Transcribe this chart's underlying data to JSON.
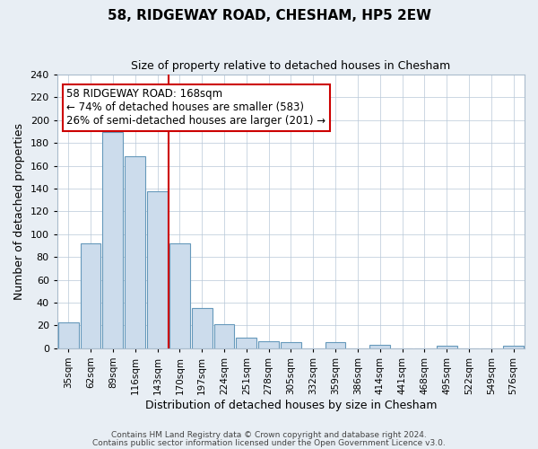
{
  "title": "58, RIDGEWAY ROAD, CHESHAM, HP5 2EW",
  "subtitle": "Size of property relative to detached houses in Chesham",
  "xlabel": "Distribution of detached houses by size in Chesham",
  "ylabel": "Number of detached properties",
  "bin_labels": [
    "35sqm",
    "62sqm",
    "89sqm",
    "116sqm",
    "143sqm",
    "170sqm",
    "197sqm",
    "224sqm",
    "251sqm",
    "278sqm",
    "305sqm",
    "332sqm",
    "359sqm",
    "386sqm",
    "414sqm",
    "441sqm",
    "468sqm",
    "495sqm",
    "522sqm",
    "549sqm",
    "576sqm"
  ],
  "bar_heights": [
    23,
    92,
    190,
    168,
    138,
    92,
    35,
    21,
    9,
    6,
    5,
    0,
    5,
    0,
    3,
    0,
    0,
    2,
    0,
    0,
    2
  ],
  "bar_color": "#ccdcec",
  "bar_edge_color": "#6699bb",
  "vline_x_index": 5,
  "vline_color": "#cc0000",
  "annotation_title": "58 RIDGEWAY ROAD: 168sqm",
  "annotation_line1": "← 74% of detached houses are smaller (583)",
  "annotation_line2": "26% of semi-detached houses are larger (201) →",
  "annotation_box_color": "#cc0000",
  "ylim": [
    0,
    240
  ],
  "yticks": [
    0,
    20,
    40,
    60,
    80,
    100,
    120,
    140,
    160,
    180,
    200,
    220,
    240
  ],
  "footer1": "Contains HM Land Registry data © Crown copyright and database right 2024.",
  "footer2": "Contains public sector information licensed under the Open Government Licence v3.0.",
  "background_color": "#e8eef4",
  "plot_background": "#ffffff",
  "title_fontsize": 11,
  "subtitle_fontsize": 9,
  "ylabel_fontsize": 9,
  "xlabel_fontsize": 9,
  "tick_fontsize": 8,
  "xtick_fontsize": 7.5,
  "annotation_fontsize": 8.5,
  "footer_fontsize": 6.5
}
